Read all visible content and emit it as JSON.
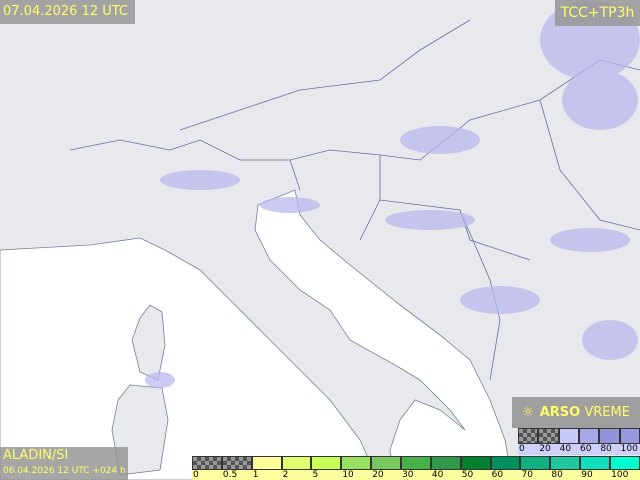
{
  "header": {
    "valid_time": "07.04.2026 12 UTC",
    "product": "TCC+TP3h"
  },
  "footer": {
    "model": "ALADIN/SI",
    "run": "06.04.2026 12 UTC +024 h"
  },
  "logo": {
    "icon": "sun-cloud-icon",
    "brand_bold": "ARSO",
    "brand_light": "VREME"
  },
  "cloud_legend": {
    "labels": [
      "0",
      "20",
      "40",
      "60",
      "80",
      "100"
    ],
    "colors": [
      "checker",
      "checker",
      "#c8c8f8",
      "#a8a8e8",
      "#9494dc",
      "#9898e0"
    ]
  },
  "precip_legend": {
    "labels": [
      "0",
      "0.5",
      "1",
      "2",
      "5",
      "10",
      "20",
      "30",
      "40",
      "50",
      "60",
      "70",
      "80",
      "90",
      "100"
    ],
    "colors": [
      "checker",
      "checker",
      "#ffff99",
      "#e0ff70",
      "#c8ff58",
      "#98e060",
      "#78c860",
      "#48b048",
      "#309848",
      "#008030",
      "#009060",
      "#10b080",
      "#20c8a0",
      "#10e0c0",
      "#00ffd0"
    ]
  },
  "colors": {
    "land": "#e9e9ed",
    "sea": "#ffffff",
    "cloud": "#b8b8ee",
    "label_text": "#ffff66"
  }
}
